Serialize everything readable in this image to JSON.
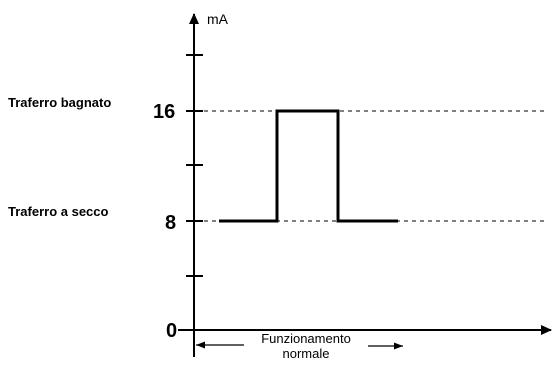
{
  "y_unit": "mA",
  "levels": [
    {
      "value": 16,
      "tick_label": "16",
      "side_label": "Traferro bagnato"
    },
    {
      "value": 8,
      "tick_label": "8",
      "side_label": "Traferro a secco"
    }
  ],
  "origin_label": "0",
  "span_label": {
    "line1": "Funzionamento",
    "line2": "normale"
  }
}
